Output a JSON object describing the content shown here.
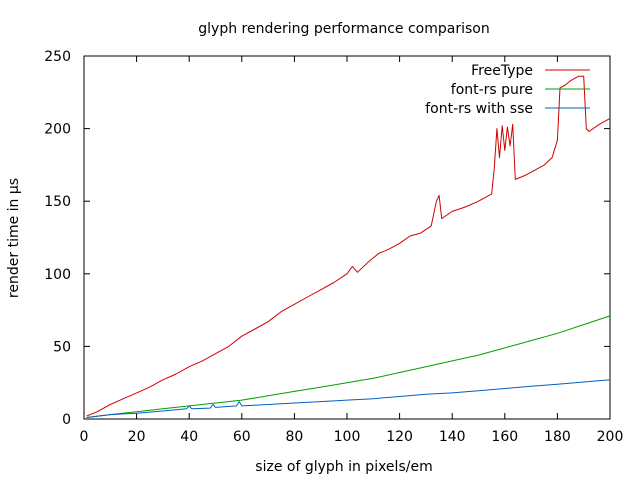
{
  "chart_data": {
    "type": "line",
    "title": "glyph rendering performance comparison",
    "xlabel": "size of glyph in pixels/em",
    "ylabel": "render time in µs",
    "xlim": [
      0,
      200
    ],
    "ylim": [
      0,
      250
    ],
    "xticks": [
      0,
      20,
      40,
      60,
      80,
      100,
      120,
      140,
      160,
      180,
      200
    ],
    "yticks": [
      0,
      50,
      100,
      150,
      200,
      250
    ],
    "grid": false,
    "legend_position": "top-right",
    "series": [
      {
        "name": "FreeType",
        "color": "#d00000",
        "points": [
          [
            1,
            2
          ],
          [
            5,
            5
          ],
          [
            10,
            10
          ],
          [
            15,
            14
          ],
          [
            20,
            18
          ],
          [
            25,
            22
          ],
          [
            30,
            27
          ],
          [
            35,
            31
          ],
          [
            40,
            36
          ],
          [
            45,
            40
          ],
          [
            50,
            45
          ],
          [
            55,
            50
          ],
          [
            60,
            57
          ],
          [
            65,
            62
          ],
          [
            70,
            67
          ],
          [
            75,
            74
          ],
          [
            80,
            79
          ],
          [
            85,
            84
          ],
          [
            90,
            89
          ],
          [
            95,
            94
          ],
          [
            100,
            100
          ],
          [
            102,
            105
          ],
          [
            104,
            101
          ],
          [
            108,
            108
          ],
          [
            112,
            114
          ],
          [
            116,
            117
          ],
          [
            120,
            121
          ],
          [
            124,
            126
          ],
          [
            128,
            128
          ],
          [
            132,
            133
          ],
          [
            134,
            150
          ],
          [
            135,
            154
          ],
          [
            136,
            138
          ],
          [
            140,
            143
          ],
          [
            145,
            146
          ],
          [
            150,
            150
          ],
          [
            155,
            155
          ],
          [
            156,
            173
          ],
          [
            157,
            200
          ],
          [
            158,
            180
          ],
          [
            159,
            202
          ],
          [
            160,
            185
          ],
          [
            161,
            201
          ],
          [
            162,
            188
          ],
          [
            163,
            203
          ],
          [
            164,
            165
          ],
          [
            168,
            168
          ],
          [
            172,
            172
          ],
          [
            175,
            175
          ],
          [
            178,
            180
          ],
          [
            180,
            192
          ],
          [
            181,
            228
          ],
          [
            183,
            230
          ],
          [
            185,
            233
          ],
          [
            188,
            236
          ],
          [
            190,
            236
          ],
          [
            191,
            200
          ],
          [
            192,
            198
          ],
          [
            196,
            203
          ],
          [
            200,
            207
          ]
        ]
      },
      {
        "name": "font-rs pure",
        "color": "#00a000",
        "points": [
          [
            1,
            1
          ],
          [
            10,
            3
          ],
          [
            20,
            5
          ],
          [
            30,
            7
          ],
          [
            40,
            9
          ],
          [
            50,
            11
          ],
          [
            60,
            13
          ],
          [
            70,
            16
          ],
          [
            80,
            19
          ],
          [
            90,
            22
          ],
          [
            100,
            25
          ],
          [
            110,
            28
          ],
          [
            120,
            32
          ],
          [
            130,
            36
          ],
          [
            140,
            40
          ],
          [
            150,
            44
          ],
          [
            160,
            49
          ],
          [
            170,
            54
          ],
          [
            180,
            59
          ],
          [
            190,
            65
          ],
          [
            200,
            71
          ]
        ]
      },
      {
        "name": "font-rs with sse",
        "color": "#0060c0",
        "points": [
          [
            1,
            1
          ],
          [
            10,
            3
          ],
          [
            20,
            4
          ],
          [
            30,
            5.5
          ],
          [
            39,
            7
          ],
          [
            40,
            9
          ],
          [
            41,
            7
          ],
          [
            48,
            7.5
          ],
          [
            49,
            10
          ],
          [
            50,
            8
          ],
          [
            58,
            9
          ],
          [
            59,
            12
          ],
          [
            60,
            9
          ],
          [
            70,
            10
          ],
          [
            80,
            11
          ],
          [
            90,
            12
          ],
          [
            100,
            13
          ],
          [
            110,
            14
          ],
          [
            120,
            15.5
          ],
          [
            130,
            17
          ],
          [
            140,
            18
          ],
          [
            150,
            19.5
          ],
          [
            160,
            21
          ],
          [
            170,
            22.5
          ],
          [
            180,
            24
          ],
          [
            190,
            25.5
          ],
          [
            200,
            27
          ]
        ]
      }
    ]
  }
}
